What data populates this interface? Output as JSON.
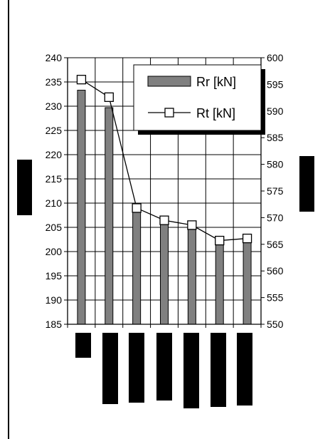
{
  "chart_data": {
    "type": "bar",
    "categories": [
      "",
      "",
      "",
      "",
      "",
      "",
      ""
    ],
    "series": [
      {
        "name": "Rr [kN]",
        "type": "bar",
        "axis": "left",
        "color": "#808080",
        "values": [
          233.3,
          229.7,
          208.5,
          206.3,
          205.3,
          201.8,
          202.3
        ]
      },
      {
        "name": "Rt [kN]",
        "type": "line",
        "axis": "right",
        "marker": "square",
        "values": [
          595.9,
          592.6,
          571.8,
          569.5,
          568.6,
          565.7,
          566.1
        ]
      }
    ],
    "left_axis": {
      "ylim": [
        185,
        240
      ],
      "ticks": [
        "185",
        "190",
        "195",
        "200",
        "205",
        "210",
        "215",
        "220",
        "225",
        "230",
        "235",
        "240"
      ]
    },
    "right_axis": {
      "ylim": [
        550,
        600
      ],
      "ticks": [
        "550",
        "555",
        "560",
        "565",
        "570",
        "575",
        "580",
        "585",
        "590",
        "595",
        "600"
      ]
    },
    "grid": true,
    "legend_position": "top-right",
    "title": "",
    "xlabel": "",
    "ylabel": ""
  }
}
